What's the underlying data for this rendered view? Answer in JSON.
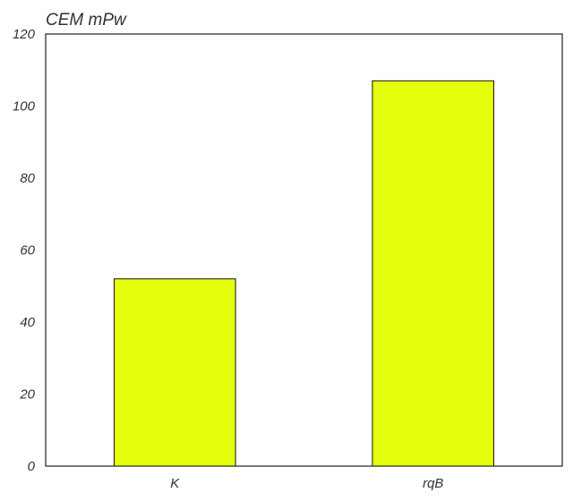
{
  "chart_data": {
    "type": "bar",
    "title": "CEM mPw",
    "xlabel": "",
    "ylabel": "",
    "categories": [
      "K",
      "rqB"
    ],
    "values": [
      52,
      107
    ],
    "ylim": [
      0,
      120
    ],
    "yticks": [
      0,
      20,
      40,
      60,
      80,
      100,
      120
    ],
    "bar_color": "#e5ff0d",
    "grid": false,
    "legend": "none"
  }
}
